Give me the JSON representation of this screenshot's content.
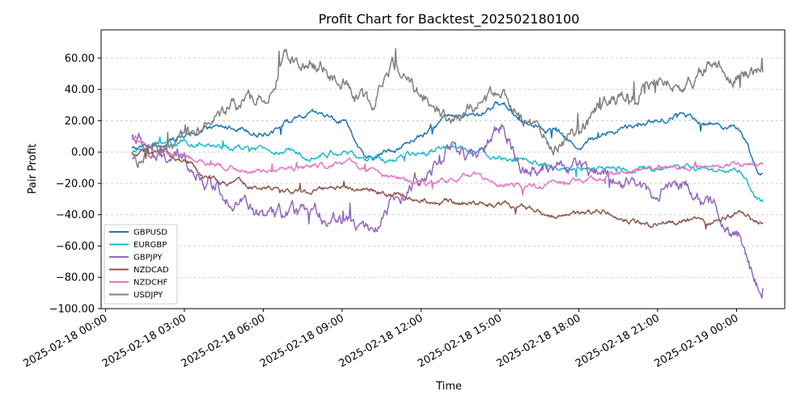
{
  "chart_data": {
    "type": "line",
    "title": "Profit Chart for Backtest_202502180100",
    "xlabel": "Time",
    "ylabel": "Pair Profit",
    "ylim": [
      -100,
      78
    ],
    "xlim": [
      "2025-02-17 23:50",
      "2025-02-19 01:50"
    ],
    "grid": "y-dashed",
    "legend_position": "lower-left",
    "x_ticks": [
      "2025-02-18 00:00",
      "2025-02-18 03:00",
      "2025-02-18 06:00",
      "2025-02-18 09:00",
      "2025-02-18 12:00",
      "2025-02-18 15:00",
      "2025-02-18 18:00",
      "2025-02-18 21:00",
      "2025-02-19 00:00"
    ],
    "y_ticks": [
      "60.00",
      "40.00",
      "20.00",
      "0.00",
      "−20.00",
      "−40.00",
      "−60.00",
      "−80.00",
      "−100.00"
    ],
    "x": [
      "2025-02-18 01:00",
      "2025-02-18 02:00",
      "2025-02-18 03:00",
      "2025-02-18 04:00",
      "2025-02-18 05:00",
      "2025-02-18 06:00",
      "2025-02-18 07:00",
      "2025-02-18 08:00",
      "2025-02-18 09:00",
      "2025-02-18 10:00",
      "2025-02-18 11:00",
      "2025-02-18 12:00",
      "2025-02-18 13:00",
      "2025-02-18 14:00",
      "2025-02-18 15:00",
      "2025-02-18 16:00",
      "2025-02-18 17:00",
      "2025-02-18 18:00",
      "2025-02-18 19:00",
      "2025-02-18 20:00",
      "2025-02-18 21:00",
      "2025-02-18 22:00",
      "2025-02-18 23:00",
      "2025-02-19 00:00",
      "2025-02-19 01:00"
    ],
    "series": [
      {
        "name": "GBPUSD",
        "color": "#1f77b4",
        "values": [
          2,
          5,
          10,
          15,
          16,
          12,
          20,
          24,
          20,
          -5,
          2,
          10,
          22,
          23,
          31,
          20,
          14,
          4,
          12,
          17,
          20,
          24,
          18,
          16,
          -14
        ]
      },
      {
        "name": "EURGBP",
        "color": "#17becf",
        "values": [
          0,
          5,
          6,
          4,
          2,
          1,
          0,
          -2,
          0,
          -5,
          -5,
          0,
          4,
          2,
          -5,
          -5,
          -10,
          -10,
          -11,
          -11,
          -11,
          -10,
          -11,
          -12,
          -32
        ]
      },
      {
        "name": "GBPJPY",
        "color": "#9467bd",
        "values": [
          10,
          -5,
          -5,
          -20,
          -30,
          -42,
          -40,
          -40,
          -42,
          -50,
          -32,
          -18,
          5,
          -5,
          15,
          -10,
          -10,
          -10,
          -15,
          -20,
          -25,
          -20,
          -35,
          -55,
          -87
        ]
      },
      {
        "name": "NZDCAD",
        "color": "#8c564b",
        "values": [
          -2,
          -1,
          -5,
          -18,
          -20,
          -22,
          -25,
          -25,
          -22,
          -24,
          -28,
          -30,
          -32,
          -33,
          -33,
          -36,
          -40,
          -38,
          -38,
          -44,
          -46,
          -43,
          -46,
          -40,
          -45
        ]
      },
      {
        "name": "NZDCHF",
        "color": "#e377c2",
        "values": [
          10,
          0,
          -3,
          -8,
          -10,
          -12,
          -10,
          -9,
          -6,
          -12,
          -17,
          -20,
          -17,
          -14,
          -22,
          -22,
          -20,
          -18,
          -16,
          -12,
          -10,
          -10,
          -9,
          -8,
          -8
        ]
      },
      {
        "name": "USDJPY",
        "color": "#7f7f7f",
        "values": [
          -5,
          0,
          10,
          20,
          28,
          35,
          60,
          55,
          45,
          30,
          55,
          38,
          20,
          30,
          35,
          20,
          5,
          15,
          30,
          38,
          45,
          40,
          55,
          50,
          51
        ]
      }
    ]
  }
}
